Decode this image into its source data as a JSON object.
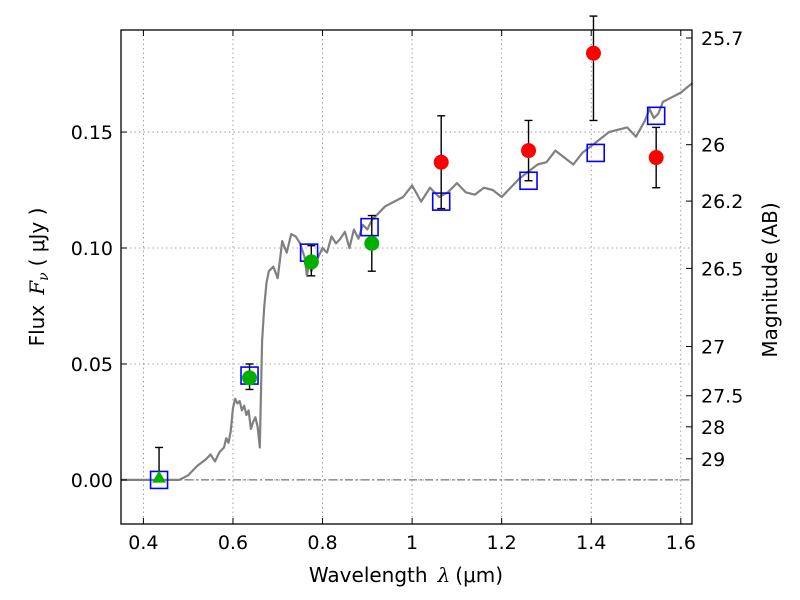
{
  "chart_data": {
    "type": "line",
    "xlabel": {
      "main": "Wavelength",
      "symbol": "λ",
      "unit": "(μm)"
    },
    "ylabel": {
      "main": "Flux",
      "symbol": "F",
      "sub": "ν",
      "unit": "( μJy )"
    },
    "ylabel_right": "Magnitude (AB)",
    "xlim": [
      0.35,
      1.625
    ],
    "ylim": [
      -0.019,
      0.194
    ],
    "grid": true,
    "legend": "none",
    "x_ticks": [
      {
        "value": 0.4,
        "label": "0.4"
      },
      {
        "value": 0.6,
        "label": "0.6"
      },
      {
        "value": 0.8,
        "label": "0.8"
      },
      {
        "value": 1.0,
        "label": "1"
      },
      {
        "value": 1.2,
        "label": "1.2"
      },
      {
        "value": 1.4,
        "label": "1.4"
      },
      {
        "value": 1.6,
        "label": "1.6"
      }
    ],
    "y_ticks": [
      {
        "value": 0.0,
        "label": "0.00"
      },
      {
        "value": 0.05,
        "label": "0.05"
      },
      {
        "value": 0.1,
        "label": "0.10"
      },
      {
        "value": 0.15,
        "label": "0.15"
      }
    ],
    "right_ticks": [
      {
        "value": 25.7,
        "label": "25.7"
      },
      {
        "value": 26,
        "label": "26"
      },
      {
        "value": 26.2,
        "label": "26.2"
      },
      {
        "value": 26.5,
        "label": "26.5"
      },
      {
        "value": 27,
        "label": "27"
      },
      {
        "value": 27.5,
        "label": "27.5"
      },
      {
        "value": 28,
        "label": "28"
      },
      {
        "value": 29,
        "label": "29"
      }
    ],
    "colors": {
      "spectrum": "#808080",
      "model_box": "#0000ff",
      "green": "#00b000",
      "red": "#ff0000",
      "errorbar": "#000000",
      "zero_line": "#555555",
      "grid": "#888888"
    },
    "series": [
      {
        "kind": "spectrum",
        "x": [
          0.35,
          0.48,
          0.5,
          0.52,
          0.54,
          0.55,
          0.56,
          0.57,
          0.58,
          0.585,
          0.59,
          0.595,
          0.6,
          0.605,
          0.61,
          0.615,
          0.62,
          0.625,
          0.63,
          0.635,
          0.64,
          0.645,
          0.65,
          0.655,
          0.66,
          0.665,
          0.67,
          0.675,
          0.68,
          0.69,
          0.7,
          0.705,
          0.71,
          0.72,
          0.73,
          0.74,
          0.75,
          0.76,
          0.765,
          0.77,
          0.775,
          0.78,
          0.79,
          0.8,
          0.81,
          0.82,
          0.83,
          0.84,
          0.85,
          0.86,
          0.87,
          0.88,
          0.89,
          0.9,
          0.91,
          0.92,
          0.94,
          0.96,
          0.98,
          1.0,
          1.02,
          1.04,
          1.06,
          1.08,
          1.1,
          1.12,
          1.14,
          1.16,
          1.18,
          1.2,
          1.22,
          1.24,
          1.26,
          1.28,
          1.3,
          1.32,
          1.34,
          1.36,
          1.38,
          1.4,
          1.42,
          1.44,
          1.46,
          1.48,
          1.5,
          1.52,
          1.53,
          1.54,
          1.55,
          1.56,
          1.58,
          1.6,
          1.625
        ],
        "y": [
          0.0,
          0.0,
          0.002,
          0.006,
          0.009,
          0.011,
          0.008,
          0.012,
          0.014,
          0.018,
          0.016,
          0.021,
          0.031,
          0.035,
          0.033,
          0.034,
          0.03,
          0.032,
          0.028,
          0.03,
          0.022,
          0.025,
          0.027,
          0.023,
          0.014,
          0.06,
          0.075,
          0.085,
          0.09,
          0.092,
          0.087,
          0.095,
          0.103,
          0.098,
          0.106,
          0.105,
          0.102,
          0.096,
          0.088,
          0.094,
          0.09,
          0.092,
          0.096,
          0.1,
          0.098,
          0.105,
          0.102,
          0.104,
          0.107,
          0.1,
          0.108,
          0.104,
          0.11,
          0.108,
          0.112,
          0.114,
          0.118,
          0.12,
          0.122,
          0.127,
          0.12,
          0.126,
          0.122,
          0.124,
          0.128,
          0.124,
          0.123,
          0.126,
          0.125,
          0.122,
          0.126,
          0.13,
          0.133,
          0.136,
          0.137,
          0.142,
          0.139,
          0.136,
          0.141,
          0.144,
          0.147,
          0.15,
          0.151,
          0.152,
          0.148,
          0.155,
          0.16,
          0.156,
          0.158,
          0.163,
          0.165,
          0.167,
          0.171
        ]
      },
      {
        "kind": "model_boxes",
        "x": [
          0.435,
          0.637,
          0.77,
          0.905,
          1.065,
          1.26,
          1.41,
          1.545
        ],
        "y": [
          0.0,
          0.045,
          0.098,
          0.109,
          0.12,
          0.129,
          0.141,
          0.157
        ]
      },
      {
        "kind": "points",
        "marker": "triangle",
        "color": "green",
        "x": [
          0.435
        ],
        "y": [
          0.001
        ],
        "err_low": [
          0.0
        ],
        "err_high": [
          0.014
        ]
      },
      {
        "kind": "points",
        "marker": "circle",
        "color": "green",
        "x": [
          0.637,
          0.775,
          0.91
        ],
        "y": [
          0.044,
          0.094,
          0.102
        ],
        "err_low": [
          0.039,
          0.088,
          0.09
        ],
        "err_high": [
          0.05,
          0.101,
          0.114
        ]
      },
      {
        "kind": "points",
        "marker": "circle",
        "color": "red",
        "x": [
          1.065,
          1.26,
          1.405,
          1.545
        ],
        "y": [
          0.137,
          0.142,
          0.184,
          0.139
        ],
        "err_low": [
          0.117,
          0.129,
          0.155,
          0.126
        ],
        "err_high": [
          0.157,
          0.155,
          0.2,
          0.152
        ]
      }
    ]
  }
}
